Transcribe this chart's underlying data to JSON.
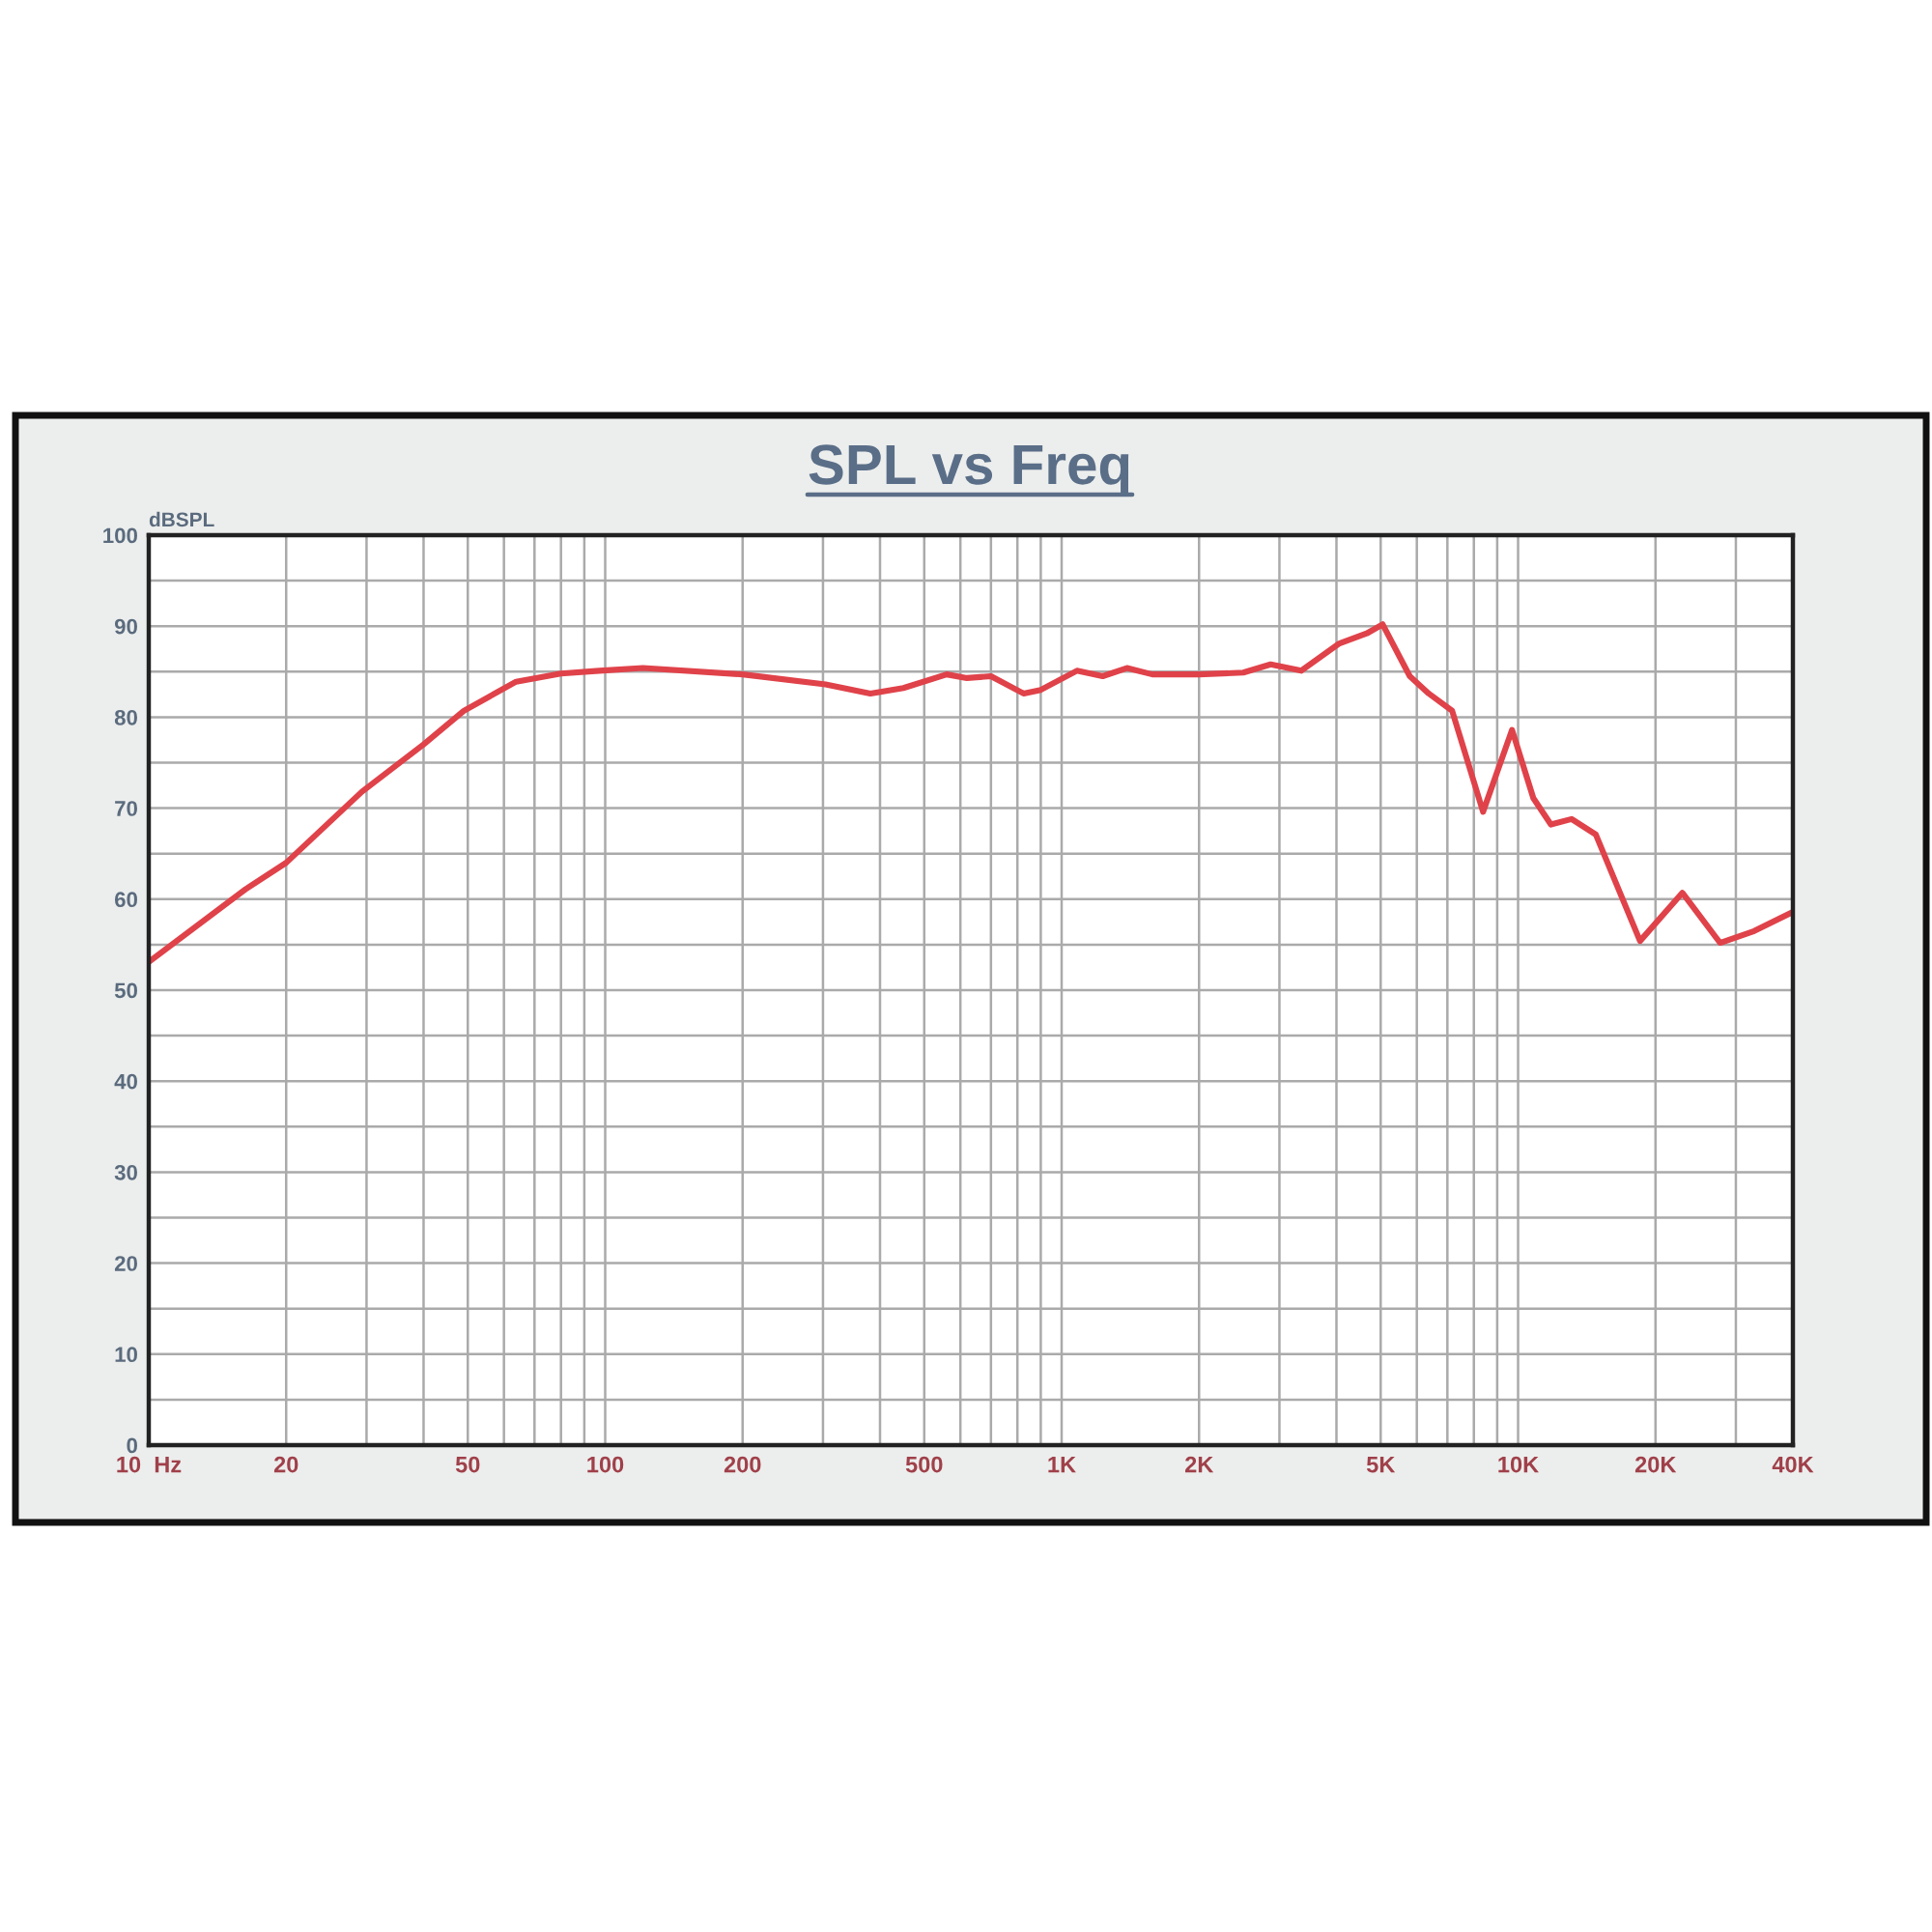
{
  "chart_data": {
    "type": "line",
    "title": "SPL vs Freq",
    "ylabel": "dBSPL",
    "x": [
      10,
      16.3,
      20,
      29.3,
      40,
      49,
      63.8,
      80,
      97,
      121,
      200,
      304,
      381,
      450,
      560,
      620,
      700,
      825,
      900,
      1080,
      1230,
      1390,
      1580,
      2000,
      2500,
      2870,
      3350,
      4060,
      4660,
      5050,
      5790,
      6370,
      7170,
      8380,
      9700,
      10800,
      11800,
      13100,
      14800,
      18500,
      22900,
      27700,
      32900,
      40000
    ],
    "series": [
      {
        "color": "#e0424a",
        "values": [
          53.1,
          61.1,
          64,
          71.8,
          77,
          80.7,
          83.9,
          84.8,
          85.1,
          85.4,
          84.7,
          83.6,
          82.6,
          83.2,
          84.7,
          84.3,
          84.5,
          82.6,
          83.0,
          85.1,
          84.5,
          85.4,
          84.7,
          84.7,
          84.9,
          85.8,
          85.1,
          88.1,
          89.2,
          90.2,
          84.5,
          82.6,
          80.7,
          69.6,
          78.6,
          71.1,
          68.2,
          68.8,
          67.1,
          55.4,
          60.7,
          55.2,
          56.5,
          58.6
        ]
      }
    ],
    "log": "x",
    "xlim": [
      10,
      40000
    ],
    "ylim": [
      0,
      100
    ],
    "xticks": [
      {
        "value": 10,
        "label": "10  Hz"
      },
      20,
      50,
      100,
      200,
      500,
      {
        "value": 1000,
        "label": "1K"
      },
      {
        "value": 2000,
        "label": "2K"
      },
      {
        "value": 5000,
        "label": "5K"
      },
      {
        "value": 10000,
        "label": "10K"
      },
      {
        "value": 20000,
        "label": "20K"
      },
      {
        "value": 40000,
        "label": "40K"
      }
    ],
    "yticks": [
      0,
      10,
      20,
      30,
      40,
      50,
      60,
      70,
      80,
      90,
      100
    ],
    "grid": true
  }
}
